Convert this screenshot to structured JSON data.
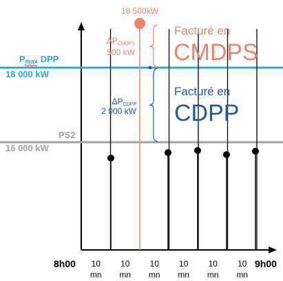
{
  "peak_label": "18 500kW",
  "pmax": {
    "symbol": "P",
    "subscript": "max",
    "name": "DPP",
    "value": "18 000 kW",
    "color": "#29a9e0"
  },
  "ps2": {
    "name": "PS2",
    "value": "16 000 kW",
    "color": "#a0a0a0"
  },
  "cmdps": {
    "delta_symbol": "ΔP",
    "delta_subscript": "CMDPS",
    "delta_value": "500 kW",
    "billed_text": "Facturé en",
    "billed_name": "CMDPS",
    "color": "#f0826a"
  },
  "cdpp": {
    "delta_symbol": "ΔP",
    "delta_subscript": "CDPP",
    "delta_value": "2 000 kW",
    "billed_text": "Facturé en",
    "billed_name": "CDPP",
    "color": "#1f5aa0"
  },
  "x_axis": {
    "start_label": "8h00",
    "end_label": "9h00",
    "interval_top": "10",
    "interval_bottom": "mn",
    "interval_count": 6
  },
  "chart_data": {
    "type": "scatter",
    "x_categories": [
      "10 mn",
      "10 mn",
      "10 mn",
      "10 mn",
      "10 mn",
      "10 mn"
    ],
    "peak": {
      "interval_boundary": 2,
      "value_kW": 18500
    },
    "thresholds_kW": {
      "Pmax_DPP": 18000,
      "PS2": 16000
    },
    "delta_kW": {
      "CMDPS": 500,
      "CDPP": 2000
    },
    "points_below_PS2": 6
  }
}
